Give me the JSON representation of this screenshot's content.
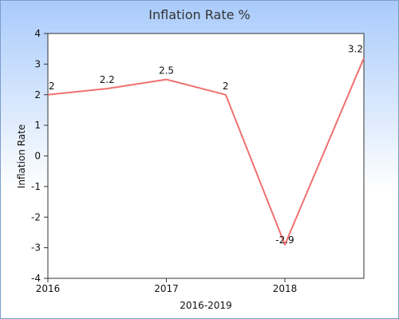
{
  "chart_data": {
    "type": "line",
    "title": "Inflation Rate %",
    "xlabel": "2016-2019",
    "ylabel": "Inflation Rate",
    "x": [
      0,
      1.5,
      3,
      4.5,
      6,
      8
    ],
    "x_ticks": [
      {
        "x": 0,
        "label": "2016"
      },
      {
        "x": 3,
        "label": "2017"
      },
      {
        "x": 6,
        "label": "2018"
      }
    ],
    "xlim": [
      0,
      8
    ],
    "ylim": [
      -4,
      4
    ],
    "y_ticks": [
      -4,
      -3,
      -2,
      -1,
      0,
      1,
      2,
      3,
      4
    ],
    "series": [
      {
        "values": [
          2,
          2.2,
          2.5,
          2,
          -2.9,
          3.2
        ],
        "labels": [
          "2",
          "2.2",
          "2.5",
          "2",
          "-2.9",
          "3.2"
        ],
        "color": "#f07070"
      }
    ],
    "grid": false,
    "background_gradient": [
      "#a9cbfb",
      "#ffffff"
    ],
    "plot_background": "#ffffff"
  }
}
